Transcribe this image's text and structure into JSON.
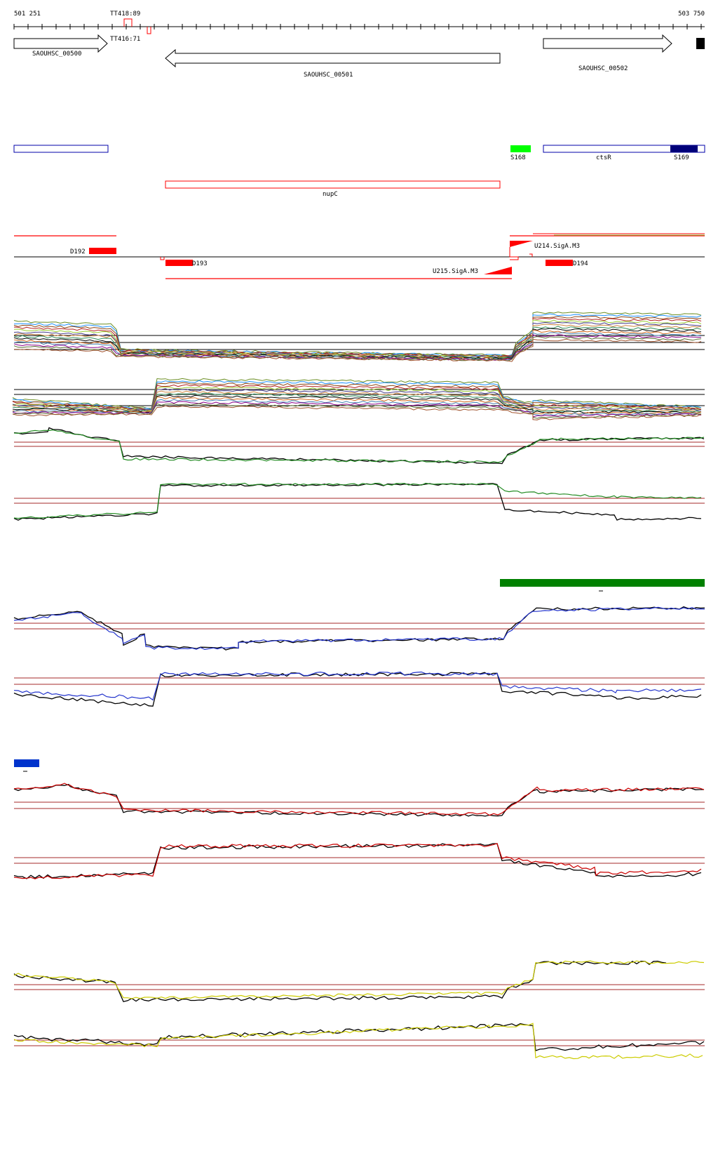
{
  "ruler": {
    "start": "501 251",
    "end": "503 750"
  },
  "terminators": {
    "tt418": "TT418:89",
    "tt416": "TT416:71"
  },
  "genes": {
    "g500": "SAOUHSC_00500",
    "g501": "SAOUHSC_00501",
    "g502": "SAOUHSC_00502"
  },
  "features": {
    "s168": "S168",
    "ctsr": "ctsR",
    "s169": "S169",
    "nupc": "nupC"
  },
  "transcripts": {
    "d192": "D192",
    "d193": "D193",
    "d194": "D194",
    "u214": "U214.SigA.M3",
    "u215": "U215.SigA.M3"
  },
  "colors": {
    "gene_outline": "#000000",
    "feature_blue": "#0000aa",
    "feature_navy": "#00007a",
    "feature_green": "#00ff00",
    "feature_red": "#ff0000",
    "condition_green": "#008000",
    "condition_blue": "#0033cc",
    "trace_blue": "#2233cc",
    "trace_red": "#cc0000",
    "trace_yellow": "#cccc00",
    "trace_green": "#228b22",
    "baseline": "#a52a2a"
  }
}
